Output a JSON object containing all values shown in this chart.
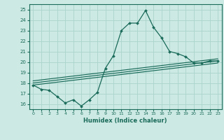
{
  "xlabel": "Humidex (Indice chaleur)",
  "bg_color": "#cce9e4",
  "grid_color": "#aad4cc",
  "line_color": "#1a6b5a",
  "xlim": [
    -0.5,
    23.5
  ],
  "ylim": [
    15.5,
    25.5
  ],
  "x_ticks": [
    0,
    1,
    2,
    3,
    4,
    5,
    6,
    7,
    8,
    9,
    10,
    11,
    12,
    13,
    14,
    15,
    16,
    17,
    18,
    19,
    20,
    21,
    22,
    23
  ],
  "y_ticks": [
    16,
    17,
    18,
    19,
    20,
    21,
    22,
    23,
    24,
    25
  ],
  "main_x": [
    0,
    1,
    2,
    3,
    4,
    5,
    6,
    7,
    8,
    9,
    10,
    11,
    12,
    13,
    14,
    15,
    16,
    17,
    18,
    19,
    20,
    21,
    22,
    23
  ],
  "main_y": [
    17.8,
    17.4,
    17.3,
    16.7,
    16.1,
    16.4,
    15.8,
    16.4,
    17.1,
    19.4,
    20.6,
    23.0,
    23.7,
    23.7,
    24.9,
    23.3,
    22.3,
    21.0,
    20.8,
    20.5,
    19.9,
    19.9,
    20.1,
    20.1
  ],
  "line1_x": [
    0,
    23
  ],
  "line1_y": [
    17.8,
    19.9
  ],
  "line2_x": [
    0,
    23
  ],
  "line2_y": [
    18.0,
    20.1
  ],
  "line3_x": [
    0,
    23
  ],
  "line3_y": [
    18.2,
    20.3
  ]
}
